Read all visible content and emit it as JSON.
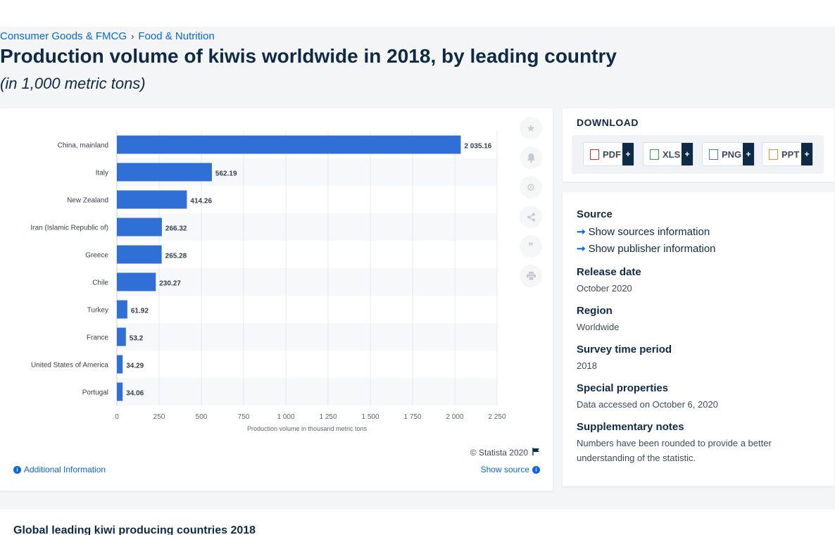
{
  "breadcrumb": {
    "items": [
      "Consumer Goods & FMCG",
      "Food & Nutrition"
    ],
    "separator": "›"
  },
  "page": {
    "title": "Production volume of kiwis worldwide in 2018, by leading country",
    "subtitle": "(in 1,000 metric tons)"
  },
  "chart_data": {
    "type": "bar",
    "orientation": "horizontal",
    "categories": [
      "China, mainland",
      "Italy",
      "New Zealand",
      "Iran (Islamic Republic of)",
      "Greece",
      "Chile",
      "Turkey",
      "France",
      "United States of America",
      "Portugal"
    ],
    "values": [
      2035.16,
      562.19,
      414.26,
      266.32,
      265.28,
      230.27,
      61.92,
      53.2,
      34.29,
      34.06
    ],
    "value_labels": [
      "2 035.16",
      "562.19",
      "414.26",
      "266.32",
      "265.28",
      "230.27",
      "61.92",
      "53.2",
      "34.29",
      "34.06"
    ],
    "xlabel": "Production volume in thousand metric tons",
    "xlim": [
      0,
      2250
    ],
    "xticks": [
      0,
      250,
      500,
      750,
      1000,
      1250,
      1500,
      1750,
      2000,
      2250
    ],
    "xtick_labels": [
      "0",
      "250",
      "500",
      "750",
      "1 000",
      "1 250",
      "1 500",
      "1 750",
      "2 000",
      "2 250"
    ],
    "bar_color": "#2f6fd6",
    "grid": true
  },
  "chart_footer": {
    "copyright": "© Statista 2020",
    "additional_info": "Additional Information",
    "show_source": "Show source"
  },
  "tools": [
    "star-icon",
    "bell-icon",
    "gear-icon",
    "share-icon",
    "quote-icon",
    "print-icon"
  ],
  "download": {
    "title": "DOWNLOAD",
    "buttons": [
      {
        "label": "PDF",
        "icon": "pdf-file-icon",
        "color": "#d93025"
      },
      {
        "label": "XLS",
        "icon": "xls-file-icon",
        "color": "#2e9e4f"
      },
      {
        "label": "PNG",
        "icon": "png-file-icon",
        "color": "#3c7be0"
      },
      {
        "label": "PPT",
        "icon": "ppt-file-icon",
        "color": "#e8892b"
      }
    ],
    "plus": "+"
  },
  "meta": {
    "source_label": "Source",
    "show_sources": "Show sources information",
    "show_publisher": "Show publisher information",
    "release_label": "Release date",
    "release_value": "October 2020",
    "region_label": "Region",
    "region_value": "Worldwide",
    "survey_label": "Survey time period",
    "survey_value": "2018",
    "special_label": "Special properties",
    "special_value": "Data accessed on October 6, 2020",
    "notes_label": "Supplementary notes",
    "notes_value": "Numbers have been rounded to provide a better understanding of the statistic."
  },
  "bottom": {
    "title": "Global leading kiwi producing countries 2018"
  }
}
